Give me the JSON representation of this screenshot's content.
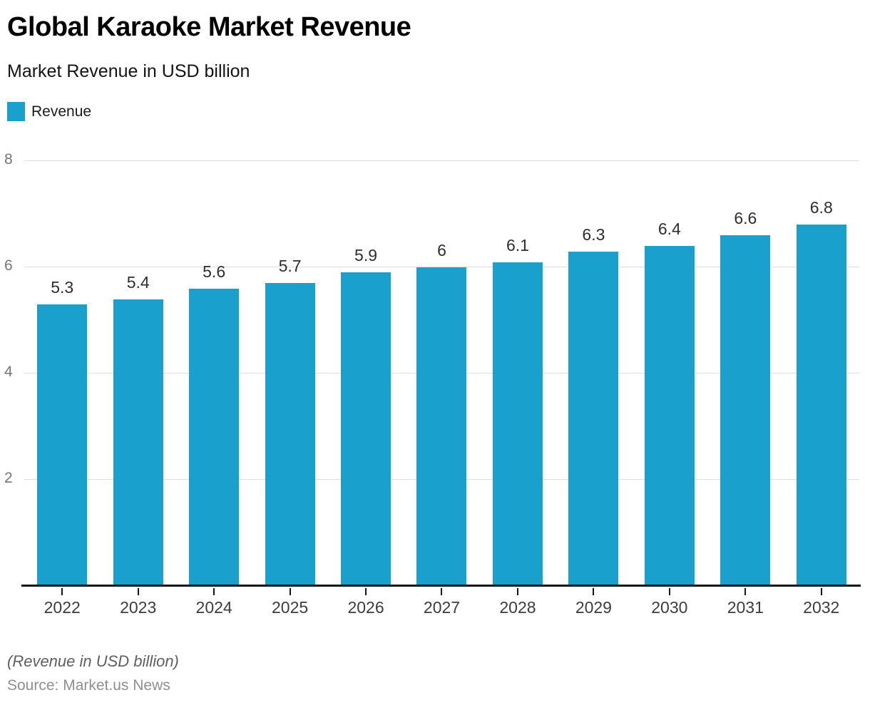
{
  "header": {
    "title": "Global Karaoke Market Revenue",
    "subtitle": "Market Revenue in USD billion"
  },
  "legend": {
    "label": "Revenue",
    "swatch_color": "#1AA0CC"
  },
  "chart_data": {
    "type": "bar",
    "title": "Global Karaoke Market Revenue",
    "subtitle": "Market Revenue in USD billion",
    "categories": [
      "2022",
      "2023",
      "2024",
      "2025",
      "2026",
      "2027",
      "2028",
      "2029",
      "2030",
      "2031",
      "2032"
    ],
    "series": [
      {
        "name": "Revenue",
        "values": [
          5.3,
          5.4,
          5.6,
          5.7,
          5.9,
          6,
          6.1,
          6.3,
          6.4,
          6.6,
          6.8
        ]
      }
    ],
    "xlabel": "",
    "ylabel": "",
    "ylim": [
      0,
      8
    ],
    "yticks": [
      2,
      4,
      6,
      8
    ],
    "grid": true,
    "value_labels": true,
    "legend_position": "top-left"
  },
  "colors": {
    "bar": "#1AA0CC",
    "gridline": "#dedede",
    "baseline": "#161616",
    "ytick_text": "#757575",
    "xtick_text": "#3d3d3d",
    "value_label_text": "#2e2e2e"
  },
  "footer": {
    "note": "(Revenue in USD billion)",
    "source": "Source: Market.us News"
  }
}
